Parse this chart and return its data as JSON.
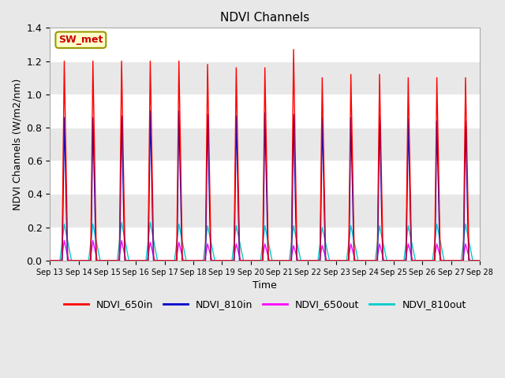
{
  "title": "NDVI Channels",
  "xlabel": "Time",
  "ylabel": "NDVI Channels (W/m2/nm)",
  "ylim": [
    0.0,
    1.4
  ],
  "background_color": "#e8e8e8",
  "plot_bg_color": "#e8e8e8",
  "grid_color": "white",
  "band_colors": [
    "white",
    "#e8e8e8"
  ],
  "colors": {
    "NDVI_650in": "#ff0000",
    "NDVI_810in": "#0000cc",
    "NDVI_650out": "#ff00ff",
    "NDVI_810out": "#00cccc"
  },
  "station_label": "SW_met",
  "x_tick_labels": [
    "Sep 13",
    "Sep 14",
    "Sep 15",
    "Sep 16",
    "Sep 17",
    "Sep 18",
    "Sep 19",
    "Sep 20",
    "Sep 21",
    "Sep 22",
    "Sep 23",
    "Sep 24",
    "Sep 25",
    "Sep 26",
    "Sep 27",
    "Sep 28"
  ],
  "num_days": 15,
  "peak_650in": [
    1.2,
    1.2,
    1.2,
    1.2,
    1.2,
    1.18,
    1.16,
    1.16,
    1.27,
    1.1,
    1.12,
    1.12,
    1.1,
    1.1,
    1.1
  ],
  "peak_810in": [
    0.86,
    0.86,
    0.87,
    0.9,
    0.9,
    0.88,
    0.87,
    0.89,
    0.88,
    0.86,
    0.86,
    0.87,
    0.85,
    0.84,
    0.84
  ],
  "peak_650out": [
    0.12,
    0.12,
    0.12,
    0.11,
    0.11,
    0.1,
    0.1,
    0.1,
    0.09,
    0.09,
    0.1,
    0.1,
    0.1,
    0.1,
    0.1
  ],
  "peak_810out": [
    0.22,
    0.22,
    0.23,
    0.23,
    0.22,
    0.21,
    0.21,
    0.21,
    0.21,
    0.2,
    0.21,
    0.21,
    0.21,
    0.22,
    0.22
  ],
  "figwidth": 6.4,
  "figheight": 4.8,
  "dpi": 100
}
